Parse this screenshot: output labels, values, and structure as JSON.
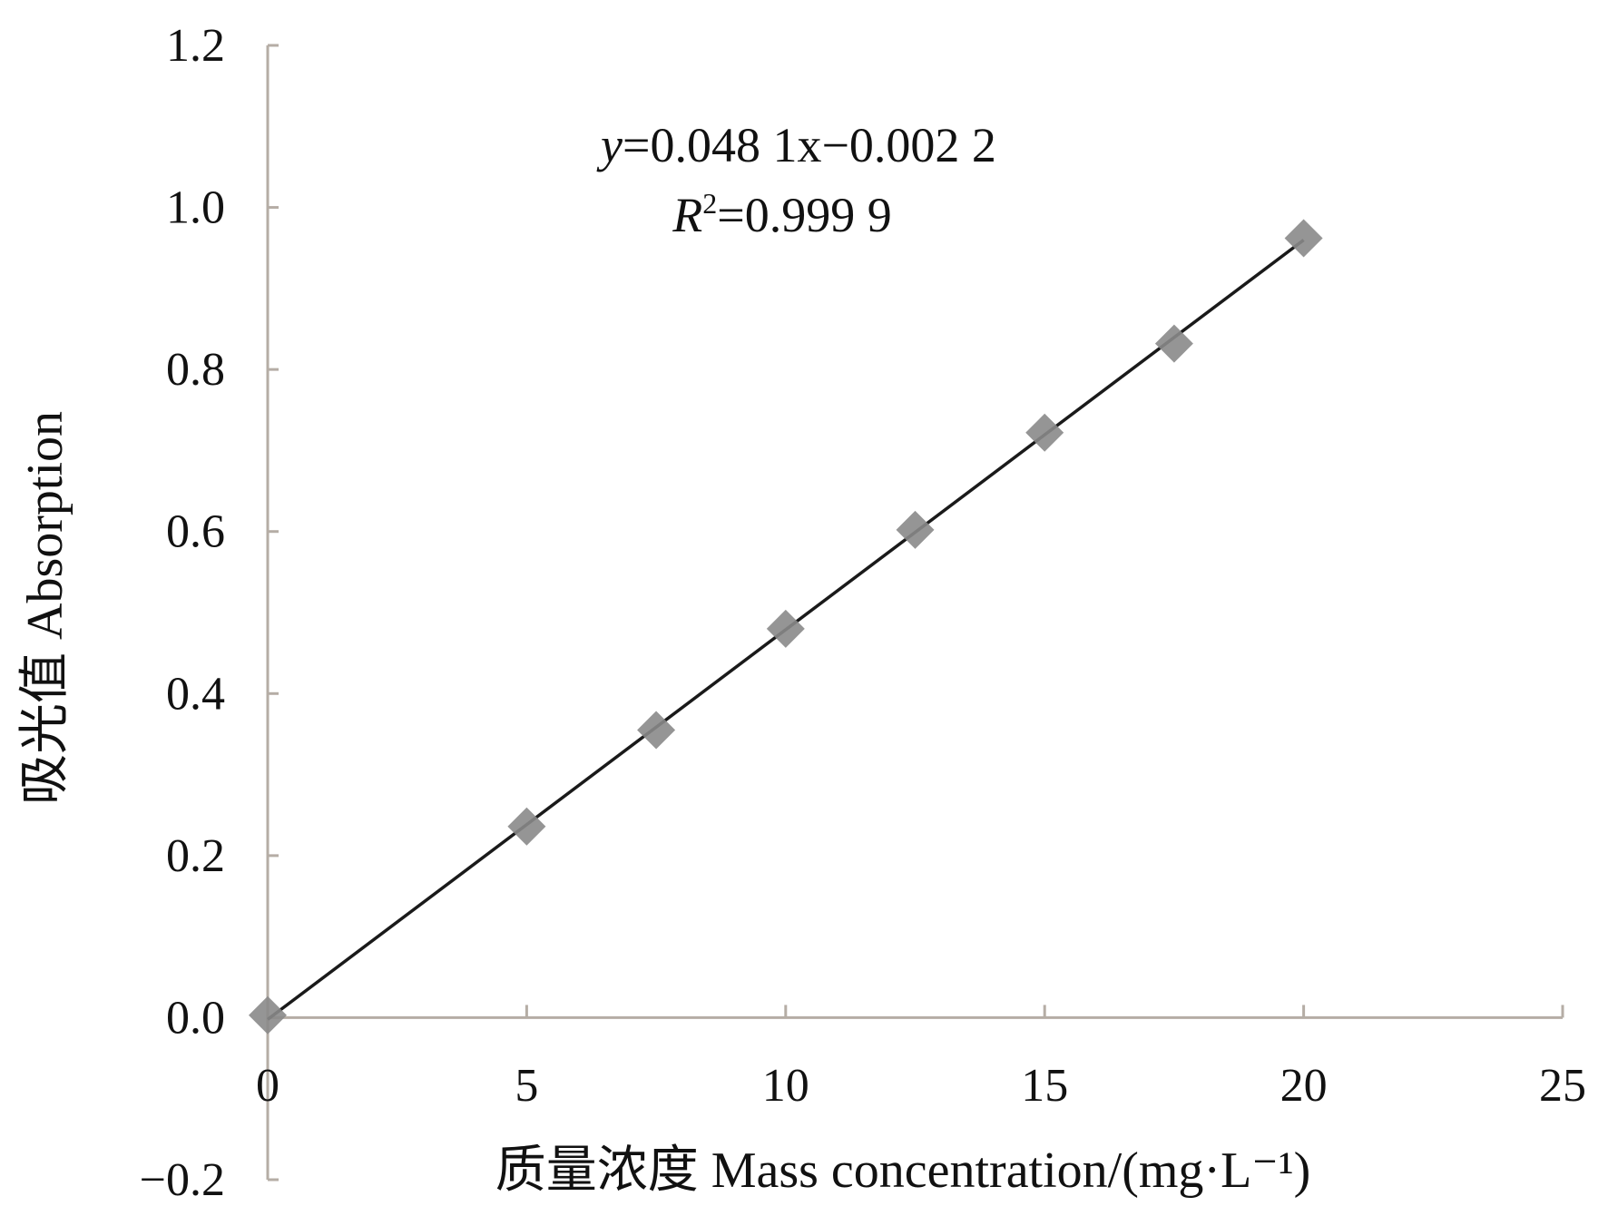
{
  "chart_data": {
    "type": "scatter",
    "xlabel": "质量浓度  Mass concentration/(mg·L⁻¹)",
    "ylabel": "吸光值 Absorption",
    "xlim": [
      0,
      25
    ],
    "ylim": [
      -0.2,
      1.2
    ],
    "xticks": [
      "0",
      "5",
      "10",
      "15",
      "20",
      "25"
    ],
    "yticks": [
      "−0.2",
      "0.0",
      "0.2",
      "0.4",
      "0.6",
      "0.8",
      "1.0",
      "1.2"
    ],
    "points": [
      {
        "x": 0,
        "y": 0.003
      },
      {
        "x": 5,
        "y": 0.236
      },
      {
        "x": 7.5,
        "y": 0.355
      },
      {
        "x": 10,
        "y": 0.48
      },
      {
        "x": 12.5,
        "y": 0.602
      },
      {
        "x": 15,
        "y": 0.722
      },
      {
        "x": 17.5,
        "y": 0.832
      },
      {
        "x": 20,
        "y": 0.962
      }
    ],
    "trendline": {
      "slope": 0.0481,
      "intercept": -0.0022,
      "x_range": [
        0,
        20
      ]
    },
    "equation": "=0.048 1x−0.002 2",
    "equation_y": "y",
    "r2_R": "R",
    "r2_sup": "2",
    "r2_value": "=0.999 9",
    "grid": false,
    "marker": "diamond",
    "colors": {
      "marker": "#8a8a8a",
      "line": "#1a1a1a",
      "axis": "#b5ada5"
    }
  }
}
